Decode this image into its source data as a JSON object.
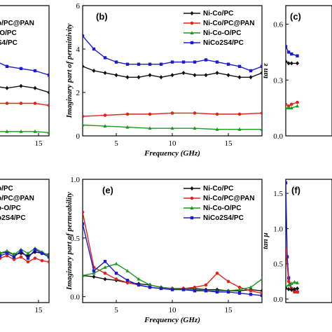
{
  "colors": {
    "Ni-Co/PC": "#111111",
    "Ni-Co/PC@PAN": "#e0241b",
    "Ni-Co-O/PC": "#1a9a1a",
    "NiCo2S4/PC": "#1a1ad0"
  },
  "chart_data": [
    {
      "id": "a",
      "type": "line",
      "panel_label": "",
      "ylabel": "",
      "xlabel": "",
      "xlim": [
        2,
        18
      ],
      "ylim": [
        0,
        6
      ],
      "x_ticks": [
        15
      ],
      "y_ticks": [],
      "legend": [
        "",
        "o/PC@PAN",
        "-O/PC",
        "S4/PC"
      ],
      "legend_prefix": [
        "Ni-Co/PC@PAN",
        "Ni-Co-O/PC",
        "NiCo2S4/PC"
      ],
      "series": [
        {
          "name": "NiCo2S4/PC",
          "x": [
            2,
            6,
            10,
            14,
            18
          ],
          "values": [
            3.5,
            3.2,
            3.1,
            3.0,
            2.8
          ]
        },
        {
          "name": "Ni-Co/PC",
          "x": [
            2,
            6,
            10,
            14,
            18
          ],
          "values": [
            2.3,
            2.2,
            2.3,
            2.2,
            2.0
          ]
        },
        {
          "name": "Ni-Co/PC@PAN",
          "x": [
            2,
            6,
            10,
            14,
            18
          ],
          "values": [
            1.5,
            1.5,
            1.5,
            1.5,
            1.4
          ]
        },
        {
          "name": "Ni-Co-O/PC",
          "x": [
            2,
            6,
            10,
            14,
            18
          ],
          "values": [
            0.2,
            0.2,
            0.2,
            0.2,
            0.15
          ]
        }
      ]
    },
    {
      "id": "b",
      "type": "line",
      "panel_label": "(b)",
      "ylabel": "Imaginary part of permittivity",
      "xlabel": "Frequency (GHz)",
      "xlim": [
        2,
        18
      ],
      "ylim": [
        0,
        6
      ],
      "x_ticks": [
        5,
        10,
        15
      ],
      "y_ticks": [
        0,
        2,
        4,
        6
      ],
      "legend": [
        "Ni-Co/PC",
        "Ni-Co/PC@PAN",
        "Ni-Co-O/PC",
        "NiCo2S4/PC"
      ],
      "series": [
        {
          "name": "Ni-Co/PC",
          "x": [
            2,
            3,
            4,
            5,
            6,
            7,
            8,
            9,
            10,
            11,
            12,
            13,
            14,
            15,
            16,
            17,
            18
          ],
          "values": [
            3.2,
            3.0,
            2.9,
            2.8,
            2.7,
            2.7,
            2.8,
            2.7,
            2.8,
            2.9,
            2.8,
            2.8,
            2.9,
            2.8,
            2.7,
            2.7,
            2.9
          ]
        },
        {
          "name": "Ni-Co/PC@PAN",
          "x": [
            2,
            4,
            6,
            8,
            10,
            12,
            14,
            16,
            18
          ],
          "values": [
            0.9,
            0.95,
            1.0,
            1.0,
            1.05,
            1.05,
            1.0,
            1.0,
            1.05
          ]
        },
        {
          "name": "Ni-Co-O/PC",
          "x": [
            2,
            4,
            6,
            8,
            10,
            12,
            14,
            16,
            18
          ],
          "values": [
            0.5,
            0.45,
            0.4,
            0.35,
            0.35,
            0.35,
            0.3,
            0.3,
            0.3
          ]
        },
        {
          "name": "NiCo2S4/PC",
          "x": [
            2,
            3,
            4,
            5,
            6,
            7,
            8,
            9,
            10,
            11,
            12,
            13,
            14,
            15,
            16,
            17,
            18
          ],
          "values": [
            4.6,
            4.0,
            3.6,
            3.4,
            3.3,
            3.3,
            3.3,
            3.3,
            3.4,
            3.4,
            3.4,
            3.5,
            3.4,
            3.3,
            3.2,
            3.0,
            3.2
          ]
        }
      ]
    },
    {
      "id": "c",
      "type": "line",
      "panel_label": "(c)",
      "ylabel": "tan ε",
      "xlabel": "",
      "xlim": [
        2,
        18
      ],
      "ylim": [
        0,
        0.7
      ],
      "x_ticks": [],
      "y_ticks": [
        0.0,
        0.3,
        0.6
      ],
      "series": [
        {
          "name": "NiCo2S4/PC",
          "x": [
            2,
            3,
            4,
            6
          ],
          "values": [
            0.48,
            0.45,
            0.44,
            0.43
          ]
        },
        {
          "name": "Ni-Co/PC",
          "x": [
            2,
            3,
            4,
            6
          ],
          "values": [
            0.4,
            0.39,
            0.39,
            0.39
          ]
        },
        {
          "name": "Ni-Co/PC@PAN",
          "x": [
            2,
            3,
            4,
            6
          ],
          "values": [
            0.17,
            0.16,
            0.17,
            0.18
          ]
        },
        {
          "name": "Ni-Co-O/PC",
          "x": [
            2,
            3,
            4,
            6
          ],
          "values": [
            0.15,
            0.15,
            0.15,
            0.16
          ]
        }
      ]
    },
    {
      "id": "d",
      "type": "line",
      "panel_label": "",
      "ylabel": "",
      "xlabel": "",
      "xlim": [
        2,
        18
      ],
      "ylim": [
        0,
        1
      ],
      "x_ticks": [
        15
      ],
      "y_ticks": [],
      "legend": [
        "o/PC",
        "o/PC@PAN",
        "o-O/PC",
        "o2S4/PC"
      ],
      "series": [
        {
          "name": "Ni-Co/PC",
          "x": [
            2,
            4,
            6,
            8,
            10,
            12,
            14,
            16,
            18
          ],
          "values": [
            0.42,
            0.4,
            0.41,
            0.39,
            0.4,
            0.38,
            0.41,
            0.4,
            0.39
          ]
        },
        {
          "name": "Ni-Co/PC@PAN",
          "x": [
            2,
            4,
            6,
            8,
            10,
            12,
            14,
            16,
            18
          ],
          "values": [
            0.4,
            0.36,
            0.38,
            0.35,
            0.37,
            0.33,
            0.36,
            0.34,
            0.33
          ]
        },
        {
          "name": "Ni-Co-O/PC",
          "x": [
            2,
            4,
            6,
            8,
            10,
            12,
            14,
            16,
            18
          ],
          "values": [
            0.38,
            0.4,
            0.42,
            0.39,
            0.43,
            0.4,
            0.44,
            0.41,
            0.38
          ]
        },
        {
          "name": "NiCo2S4/PC",
          "x": [
            2,
            4,
            6,
            8,
            10,
            12,
            14,
            16,
            18
          ],
          "values": [
            0.41,
            0.38,
            0.4,
            0.37,
            0.42,
            0.36,
            0.43,
            0.4,
            0.37
          ]
        }
      ]
    },
    {
      "id": "e",
      "type": "line",
      "panel_label": "(e)",
      "ylabel": "Imaginary part of permeability",
      "xlabel": "Frequency (GHz)",
      "xlim": [
        2,
        18
      ],
      "ylim": [
        -0.05,
        1.0
      ],
      "x_ticks": [
        5,
        10,
        15
      ],
      "y_ticks": [
        0.0,
        0.5,
        1.0
      ],
      "legend": [
        "Ni-Co/PC",
        "Ni-Co/PC@PAN",
        "Ni-Co-O/PC",
        "NiCo2S4/PC"
      ],
      "series": [
        {
          "name": "Ni-Co/PC",
          "x": [
            2,
            3,
            4,
            5,
            6,
            7,
            8,
            9,
            10,
            11,
            12,
            13,
            14,
            15,
            16,
            17,
            18
          ],
          "values": [
            0.18,
            0.17,
            0.15,
            0.14,
            0.12,
            0.11,
            0.1,
            0.08,
            0.07,
            0.07,
            0.07,
            0.06,
            0.06,
            0.05,
            0.05,
            0.06,
            0.05
          ]
        },
        {
          "name": "Ni-Co/PC@PAN",
          "x": [
            2,
            3,
            4,
            5,
            6,
            7,
            8,
            9,
            10,
            11,
            12,
            13,
            14,
            15,
            16,
            17,
            18
          ],
          "values": [
            0.72,
            0.25,
            0.2,
            0.15,
            0.12,
            0.1,
            0.08,
            0.07,
            0.07,
            0.07,
            0.08,
            0.1,
            0.2,
            0.13,
            0.08,
            0.05,
            0.03
          ]
        },
        {
          "name": "Ni-Co-O/PC",
          "x": [
            2,
            3,
            4,
            5,
            6,
            7,
            8,
            9,
            10,
            11,
            12,
            13,
            14,
            15,
            16,
            17,
            18
          ],
          "values": [
            0.18,
            0.2,
            0.25,
            0.28,
            0.22,
            0.15,
            0.1,
            0.08,
            0.07,
            0.06,
            0.06,
            0.05,
            0.05,
            0.05,
            0.06,
            0.08,
            0.15
          ]
        },
        {
          "name": "NiCo2S4/PC",
          "x": [
            2,
            3,
            4,
            5,
            6,
            7,
            8,
            9,
            10,
            11,
            12,
            13,
            14,
            15,
            16,
            17,
            18
          ],
          "values": [
            0.62,
            0.22,
            0.3,
            0.2,
            0.14,
            0.1,
            0.08,
            0.07,
            0.06,
            0.06,
            0.05,
            0.05,
            0.04,
            0.04,
            0.03,
            0.02,
            0.01
          ]
        }
      ]
    },
    {
      "id": "f",
      "type": "line",
      "panel_label": "(f)",
      "ylabel": "tan μ",
      "xlabel": "",
      "xlim": [
        2,
        18
      ],
      "ylim": [
        -0.05,
        1.7
      ],
      "x_ticks": [],
      "y_ticks": [
        0.0,
        0.5,
        1.0,
        1.5
      ],
      "series": [
        {
          "name": "NiCo2S4/PC",
          "x": [
            2,
            2.5,
            3,
            4,
            5,
            6
          ],
          "values": [
            1.65,
            0.6,
            0.3,
            0.15,
            0.12,
            0.1
          ]
        },
        {
          "name": "Ni-Co/PC@PAN",
          "x": [
            2,
            3,
            4,
            5,
            6
          ],
          "values": [
            0.7,
            0.25,
            0.15,
            0.1,
            0.1
          ]
        },
        {
          "name": "Ni-Co-O/PC",
          "x": [
            2,
            3,
            4,
            5,
            6
          ],
          "values": [
            0.18,
            0.2,
            0.22,
            0.24,
            0.23
          ]
        },
        {
          "name": "Ni-Co/PC",
          "x": [
            2,
            3,
            4,
            5,
            6
          ],
          "values": [
            0.15,
            0.14,
            0.13,
            0.14,
            0.15
          ]
        }
      ]
    }
  ]
}
